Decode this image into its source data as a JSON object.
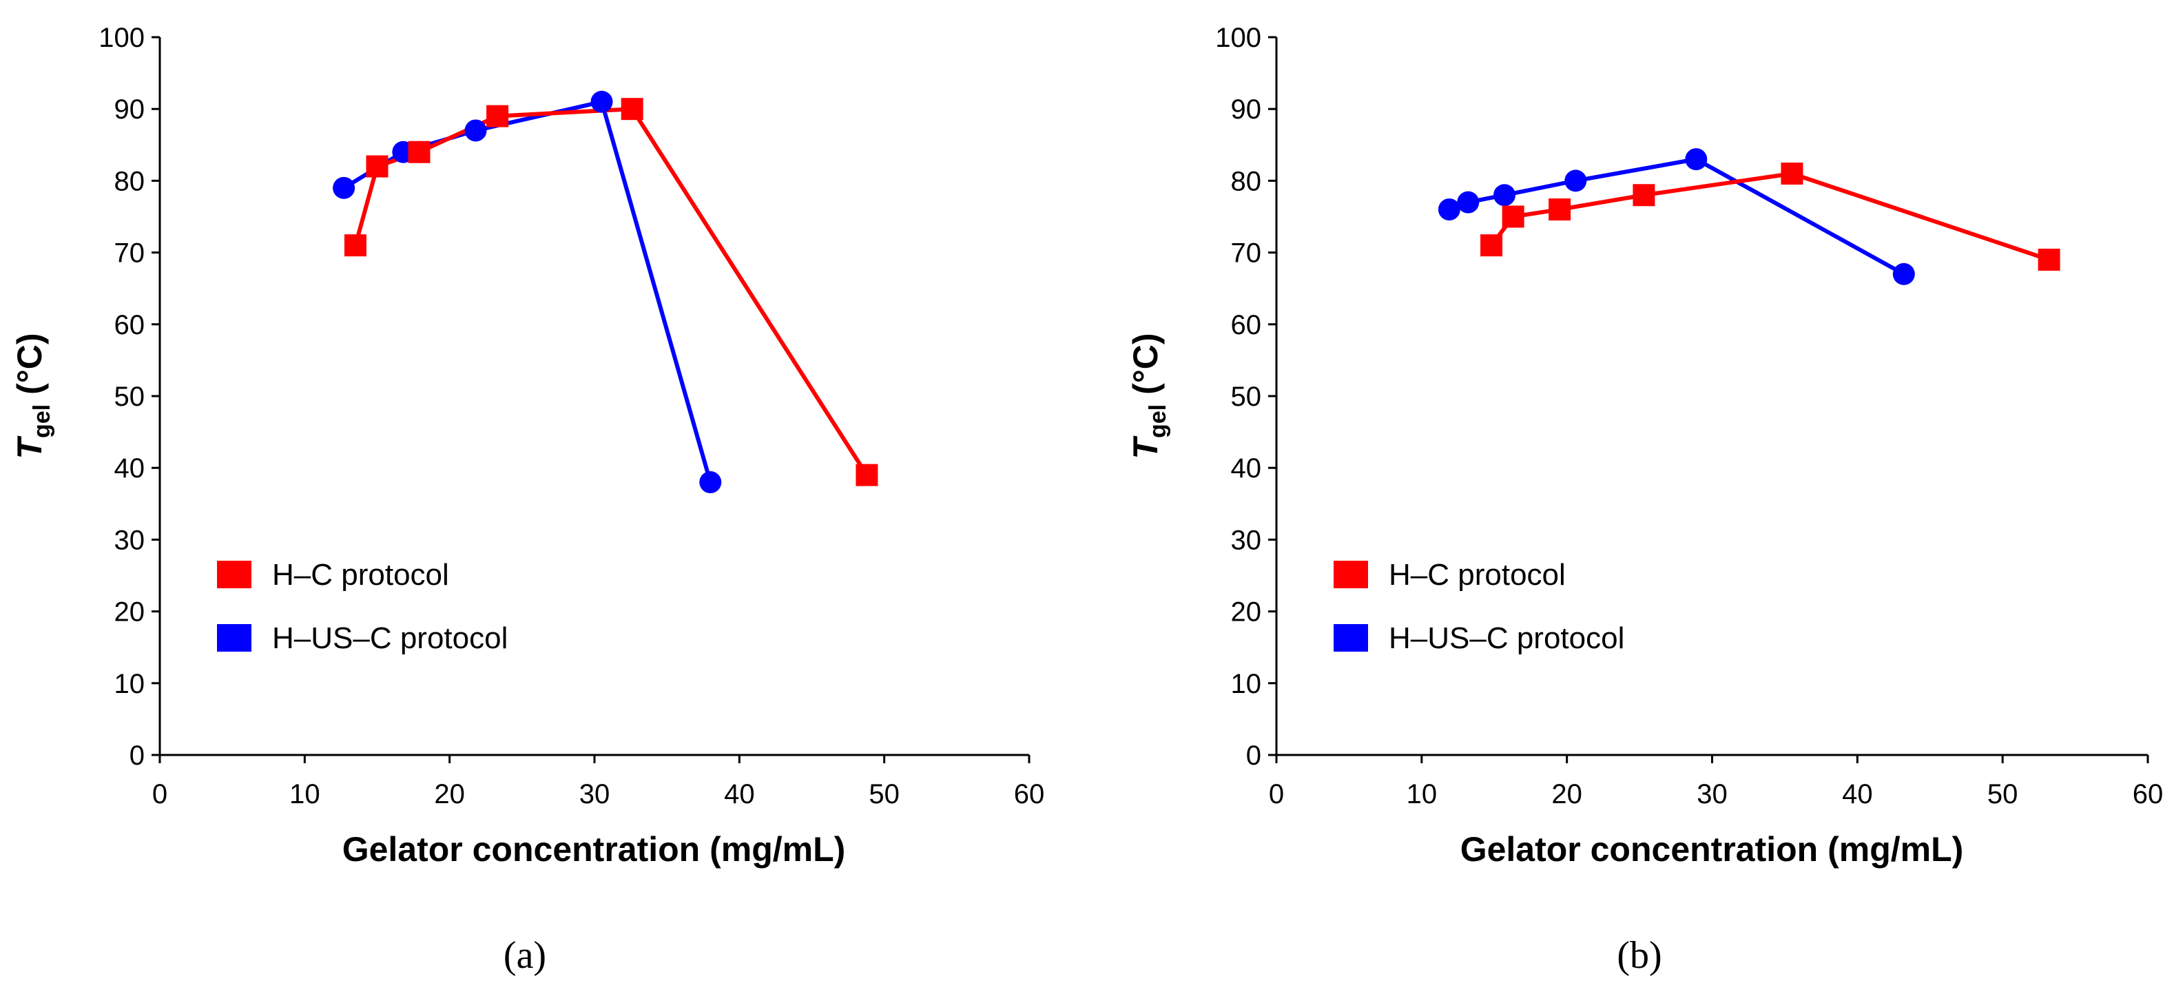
{
  "chart_data": [
    {
      "panel": "a",
      "caption": "(a)",
      "type": "line",
      "xlabel": "Gelator concentration (mg/mL)",
      "ylabel_main": "T",
      "ylabel_sub": "gel",
      "ylabel_unit": " (°C)",
      "xlim": [
        0,
        60
      ],
      "ylim": [
        0,
        100
      ],
      "xticks": [
        0,
        10,
        20,
        30,
        40,
        50,
        60
      ],
      "yticks": [
        0,
        10,
        20,
        30,
        40,
        50,
        60,
        70,
        80,
        90,
        100
      ],
      "legend_position": "lower-left",
      "series": [
        {
          "name": "H–US–C protocol",
          "color": "#0000ff",
          "marker": "circle",
          "x": [
            12.7,
            16.8,
            21.8,
            30.5,
            38.0
          ],
          "y": [
            79,
            84,
            87,
            91,
            38
          ]
        },
        {
          "name": "H–C protocol",
          "color": "#ff0000",
          "marker": "square",
          "x": [
            13.5,
            15.0,
            17.9,
            23.3,
            32.6,
            48.8
          ],
          "y": [
            71,
            82,
            84,
            89,
            90,
            39
          ]
        }
      ]
    },
    {
      "panel": "b",
      "caption": "(b)",
      "type": "line",
      "xlabel": "Gelator concentration (mg/mL)",
      "ylabel_main": "T",
      "ylabel_sub": "gel",
      "ylabel_unit": " (°C)",
      "xlim": [
        0,
        60
      ],
      "ylim": [
        0,
        100
      ],
      "xticks": [
        0,
        10,
        20,
        30,
        40,
        50,
        60
      ],
      "yticks": [
        0,
        10,
        20,
        30,
        40,
        50,
        60,
        70,
        80,
        90,
        100
      ],
      "legend_position": "lower-left",
      "series": [
        {
          "name": "H–US–C protocol",
          "color": "#0000ff",
          "marker": "circle",
          "x": [
            11.9,
            13.2,
            15.7,
            20.6,
            28.9,
            43.2
          ],
          "y": [
            76,
            77,
            78,
            80,
            83,
            67
          ]
        },
        {
          "name": "H–C protocol",
          "color": "#ff0000",
          "marker": "square",
          "x": [
            14.8,
            16.3,
            19.5,
            25.3,
            35.5,
            53.2
          ],
          "y": [
            71,
            75,
            76,
            78,
            81,
            69
          ]
        }
      ]
    }
  ]
}
